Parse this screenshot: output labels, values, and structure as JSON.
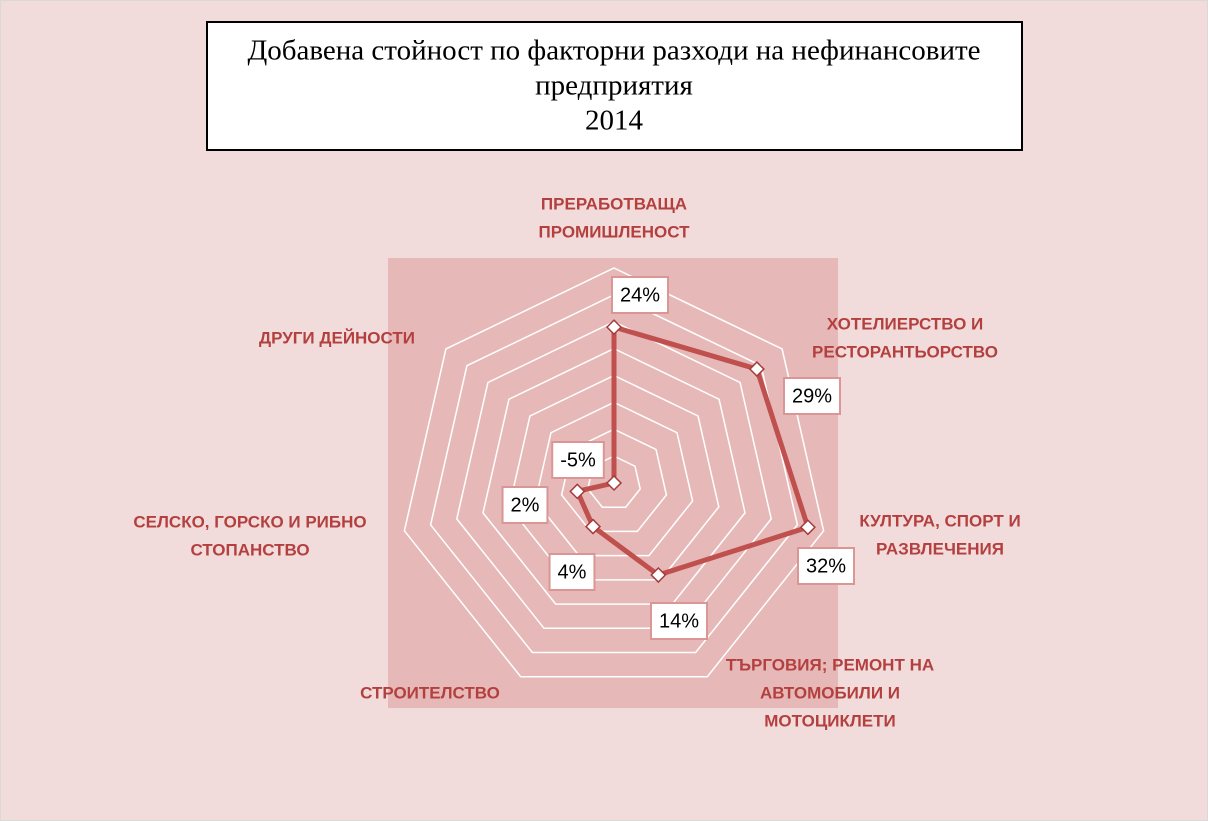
{
  "chart_data": {
    "type": "radar",
    "title": [
      "Добавена стойност по факторни разходи на нефинансовите",
      "предприятия"
    ],
    "subtitle": "2014",
    "categories": [
      [
        "ПРЕРАБОТВАЩА",
        "ПРОМИШЛЕНОСТ"
      ],
      [
        "ХОТЕЛИЕРСТВО И",
        "РЕСТОРАНТЬОРСТВО"
      ],
      [
        "КУЛТУРА, СПОРТ И",
        "РАЗВЛЕЧЕНИЯ"
      ],
      [
        "ТЪРГОВИЯ; РЕМОНТ НА",
        "АВТОМОБИЛИ И",
        "МОТОЦИКЛЕТИ"
      ],
      [
        "СТРОИТЕЛСТВО"
      ],
      [
        "СЕЛСКО, ГОРСКО И РИБНО",
        "СТОПАНСТВО"
      ],
      [
        "ДРУГИ ДЕЙНОСТИ"
      ]
    ],
    "values": [
      24,
      29,
      32,
      14,
      4,
      2,
      -5
    ],
    "value_labels": [
      "24%",
      "29%",
      "32%",
      "14%",
      "4%",
      "2%",
      "-5%"
    ],
    "color": "#c0504d",
    "rlim": [
      -5,
      35
    ],
    "rticks": [
      -5,
      0,
      5,
      10,
      15,
      20,
      25,
      30,
      35
    ],
    "grid": true
  }
}
